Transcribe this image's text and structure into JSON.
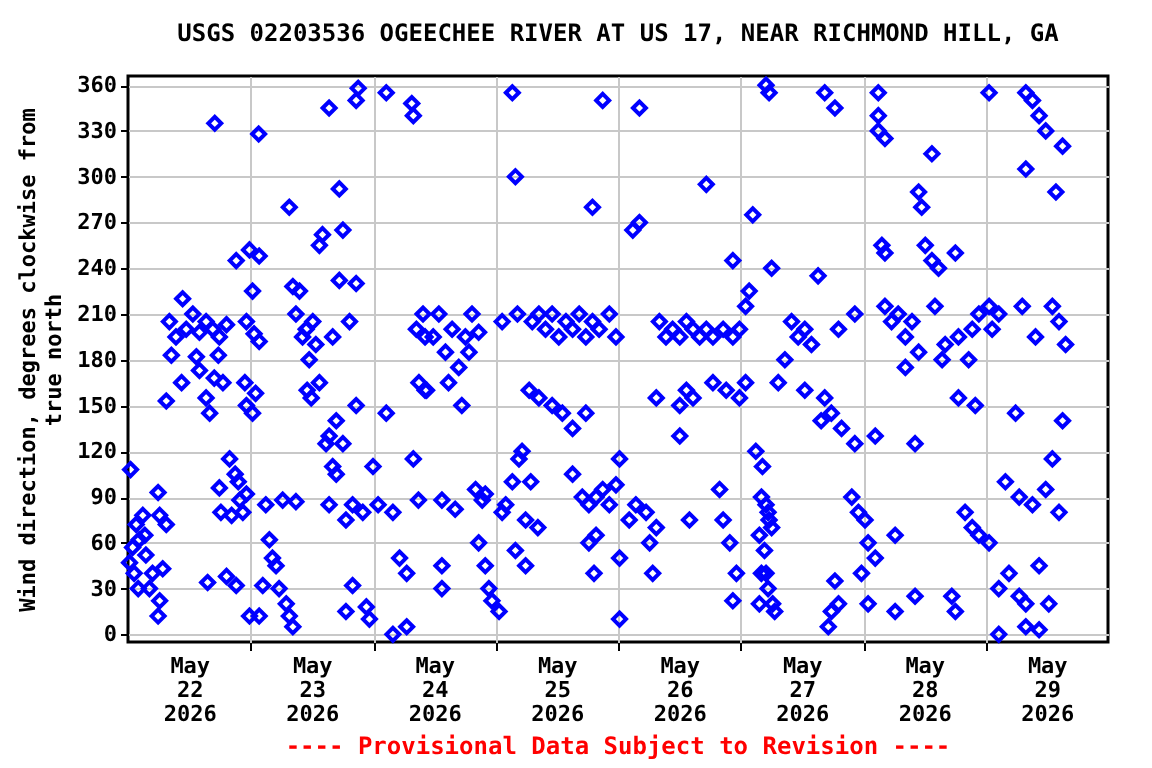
{
  "chart_data": {
    "type": "scatter",
    "title": "USGS 02203536 OGEECHEE RIVER AT US 17, NEAR RICHMOND HILL, GA",
    "ylabel": "Wind direction, degrees clockwise from true north",
    "annotations": [
      "---- Provisional Data Subject to Revision ----"
    ],
    "xlim": [
      "2026-05-22T00:00",
      "2026-05-30T00:00"
    ],
    "xticks": [
      {
        "value": "2026-05-22T12:00",
        "label": "May\n22\n2026"
      },
      {
        "value": "2026-05-23T00:00",
        "label": null
      },
      {
        "value": "2026-05-23T12:00",
        "label": "May\n23\n2026"
      },
      {
        "value": "2026-05-24T00:00",
        "label": null
      },
      {
        "value": "2026-05-24T12:00",
        "label": "May\n24\n2026"
      },
      {
        "value": "2026-05-25T00:00",
        "label": null
      },
      {
        "value": "2026-05-25T12:00",
        "label": "May\n25\n2026"
      },
      {
        "value": "2026-05-26T00:00",
        "label": null
      },
      {
        "value": "2026-05-26T12:00",
        "label": "May\n26\n2026"
      },
      {
        "value": "2026-05-27T00:00",
        "label": null
      },
      {
        "value": "2026-05-27T12:00",
        "label": "May\n27\n2026"
      },
      {
        "value": "2026-05-28T00:00",
        "label": null
      },
      {
        "value": "2026-05-28T12:00",
        "label": "May\n28\n2026"
      },
      {
        "value": "2026-05-29T00:00",
        "label": null
      },
      {
        "value": "2026-05-29T12:00",
        "label": "May\n29\n2026"
      }
    ],
    "ylim": [
      -5,
      366
    ],
    "yticks": [
      0,
      30,
      60,
      90,
      120,
      150,
      180,
      210,
      240,
      270,
      300,
      330,
      360
    ],
    "grid": true,
    "marker": "diamond",
    "series": [
      {
        "color": "#0000ff",
        "x": [
          "2026-05-22T00:30",
          "2026-05-22T00:18",
          "2026-05-22T00:54",
          "2026-05-22T01:36",
          "2026-05-22T02:12",
          "2026-05-22T02:54",
          "2026-05-22T01:12",
          "2026-05-22T02:00",
          "2026-05-22T03:30",
          "2026-05-22T04:48",
          "2026-05-22T05:54",
          "2026-05-22T06:12",
          "2026-05-22T06:48",
          "2026-05-22T06:12",
          "2026-05-22T05:54",
          "2026-05-22T07:30",
          "2026-05-22T04:12",
          "2026-05-22T03:18",
          "2026-05-22T07:30",
          "2026-05-22T08:30",
          "2026-05-22T10:30",
          "2026-05-22T10:42",
          "2026-05-22T08:06",
          "2026-05-22T09:24",
          "2026-05-22T11:24",
          "2026-05-22T12:42",
          "2026-05-22T14:00",
          "2026-05-22T15:18",
          "2026-05-22T16:36",
          "2026-05-22T17:54",
          "2026-05-22T19:18",
          "2026-05-22T13:24",
          "2026-05-22T14:00",
          "2026-05-22T15:18",
          "2026-05-22T16:00",
          "2026-05-22T17:42",
          "2026-05-22T16:54",
          "2026-05-22T18:36",
          "2026-05-22T17:00",
          "2026-05-22T15:36",
          "2026-05-22T19:18",
          "2026-05-22T21:12",
          "2026-05-22T17:54",
          "2026-05-22T18:12",
          "2026-05-22T19:54",
          "2026-05-22T20:18",
          "2026-05-22T21:00",
          "2026-05-22T21:36",
          "2026-05-22T21:54",
          "2026-05-22T22:30",
          "2026-05-22T23:12",
          "2026-05-22T21:12",
          "2026-05-22T23:12",
          "2026-05-22T23:48",
          "2026-05-22T22:54",
          "2026-05-22T23:12",
          "2026-05-22T23:48",
          "2026-05-23T00:24",
          "2026-05-23T01:42",
          "2026-05-23T00:42",
          "2026-05-23T01:42",
          "2026-05-23T00:24",
          "2026-05-23T01:00",
          "2026-05-23T01:36",
          "2026-05-23T01:42",
          "2026-05-23T02:24",
          "2026-05-23T03:00",
          "2026-05-23T03:42",
          "2026-05-23T04:18",
          "2026-05-23T05:00",
          "2026-05-23T05:36",
          "2026-05-23T06:18",
          "2026-05-23T07:00",
          "2026-05-23T07:36",
          "2026-05-23T08:18",
          "2026-05-23T08:54",
          "2026-05-23T07:36",
          "2026-05-23T08:18",
          "2026-05-23T09:36",
          "2026-05-23T08:54",
          "2026-05-23T10:12",
          "2026-05-23T10:54",
          "2026-05-23T11:30",
          "2026-05-23T12:12",
          "2026-05-23T12:48",
          "2026-05-23T11:06",
          "2026-05-23T11:54",
          "2026-05-23T13:30",
          "2026-05-23T14:06",
          "2026-05-23T13:30",
          "2026-05-23T15:24",
          "2026-05-23T17:24",
          "2026-05-23T18:06",
          "2026-05-23T17:24",
          "2026-05-23T20:42",
          "2026-05-23T19:24",
          "2026-05-23T16:06",
          "2026-05-23T16:48",
          "2026-05-23T14:48",
          "2026-05-23T15:24",
          "2026-05-23T16:06",
          "2026-05-23T16:48",
          "2026-05-23T18:06",
          "2026-05-23T15:24",
          "2026-05-23T18:42",
          "2026-05-23T20:00",
          "2026-05-23T18:42",
          "2026-05-23T20:42",
          "2026-05-23T20:00",
          "2026-05-23T22:00",
          "2026-05-23T22:42",
          "2026-05-23T23:18",
          "2026-05-23T20:42",
          "2026-05-23T21:06",
          "2026-05-24T00:00",
          "2026-05-24T01:00",
          "2026-05-24T02:36",
          "2026-05-24T02:36",
          "2026-05-24T03:54",
          "2026-05-24T05:12",
          "2026-05-24T06:36",
          "2026-05-24T03:54",
          "2026-05-24T06:36",
          "2026-05-24T07:54",
          "2026-05-24T08:30",
          "2026-05-24T07:54",
          "2026-05-24T07:36",
          "2026-05-24T09:48",
          "2026-05-24T11:48",
          "2026-05-24T09:00",
          "2026-05-24T10:30",
          "2026-05-24T10:12",
          "2026-05-24T12:54",
          "2026-05-24T15:30",
          "2026-05-24T18:06",
          "2026-05-24T19:24",
          "2026-05-24T20:42",
          "2026-05-24T14:12",
          "2026-05-24T16:48",
          "2026-05-24T18:48",
          "2026-05-24T14:48",
          "2026-05-24T17:24",
          "2026-05-24T10:12",
          "2026-05-24T08:54",
          "2026-05-24T13:30",
          "2026-05-24T16:06",
          "2026-05-24T20:06",
          "2026-05-24T21:24",
          "2026-05-24T22:00",
          "2026-05-24T13:30",
          "2026-05-24T13:30",
          "2026-05-24T20:42",
          "2026-05-24T22:00",
          "2026-05-24T22:42",
          "2026-05-24T23:18",
          "2026-05-25T00:42",
          "2026-05-25T01:18",
          "2026-05-25T02:00",
          "2026-05-25T03:18",
          "2026-05-25T04:36",
          "2026-05-25T05:12",
          "2026-05-25T05:54",
          "2026-05-25T03:54",
          "2026-05-25T05:54",
          "2026-05-25T08:18",
          "2026-05-25T03:18",
          "2026-05-25T03:54",
          "2026-05-25T01:18",
          "2026-05-25T04:18",
          "2026-05-25T07:12",
          "2026-05-25T08:30",
          "2026-05-25T09:48",
          "2026-05-25T11:06",
          "2026-05-25T12:24",
          "2026-05-25T13:48",
          "2026-05-25T15:06",
          "2026-05-25T16:24",
          "2026-05-25T17:42",
          "2026-05-25T19:00",
          "2026-05-25T20:18",
          "2026-05-25T22:18",
          "2026-05-25T23:36",
          "2026-05-25T06:36",
          "2026-05-25T08:30",
          "2026-05-25T11:06",
          "2026-05-25T13:06",
          "2026-05-25T15:06",
          "2026-05-25T17:42",
          "2026-05-25T06:54",
          "2026-05-25T15:06",
          "2026-05-25T17:00",
          "2026-05-25T18:18",
          "2026-05-25T19:42",
          "2026-05-25T21:00",
          "2026-05-25T22:18",
          "2026-05-25T23:36",
          "2026-05-25T18:18",
          "2026-05-25T19:42",
          "2026-05-25T19:00",
          "2026-05-25T21:00",
          "2026-05-25T19:18",
          "2026-05-26T00:18",
          "2026-05-26T00:18",
          "2026-05-26T00:18",
          "2026-05-26T02:12",
          "2026-05-26T03:30",
          "2026-05-26T02:54",
          "2026-05-26T04:12",
          "2026-05-26T04:12",
          "2026-05-26T05:30",
          "2026-05-26T06:12",
          "2026-05-26T06:48",
          "2026-05-26T07:30",
          "2026-05-26T08:06",
          "2026-05-26T09:24",
          "2026-05-26T10:42",
          "2026-05-26T12:06",
          "2026-05-26T13:24",
          "2026-05-26T14:42",
          "2026-05-26T16:00",
          "2026-05-26T17:18",
          "2026-05-26T18:36",
          "2026-05-26T20:36",
          "2026-05-26T22:30",
          "2026-05-26T23:48",
          "2026-05-26T12:06",
          "2026-05-26T13:24",
          "2026-05-26T14:42",
          "2026-05-26T18:36",
          "2026-05-26T21:12",
          "2026-05-26T23:48",
          "2026-05-26T17:18",
          "2026-05-26T22:30",
          "2026-05-26T07:30",
          "2026-05-26T12:06",
          "2026-05-26T14:00",
          "2026-05-26T19:54",
          "2026-05-26T20:36",
          "2026-05-26T21:54",
          "2026-05-26T22:30",
          "2026-05-26T23:12",
          "2026-05-27T01:00",
          "2026-05-27T01:42",
          "2026-05-27T01:00",
          "2026-05-27T02:24",
          "2026-05-27T03:00",
          "2026-05-27T04:18",
          "2026-05-27T05:00",
          "2026-05-27T05:36",
          "2026-05-27T03:42",
          "2026-05-27T05:00",
          "2026-05-27T03:42",
          "2026-05-27T06:18",
          "2026-05-27T05:36",
          "2026-05-27T05:00",
          "2026-05-27T16:30",
          "2026-05-27T18:30",
          "2026-05-27T06:06",
          "2026-05-27T15:12",
          "2026-05-27T10:00",
          "2026-05-27T11:18",
          "2026-05-27T12:36",
          "2026-05-27T13:54",
          "2026-05-27T08:42",
          "2026-05-27T07:24",
          "2026-05-27T12:36",
          "2026-05-27T16:30",
          "2026-05-27T19:12",
          "2026-05-27T22:24",
          "2026-05-27T15:48",
          "2026-05-27T17:48",
          "2026-05-27T19:48",
          "2026-05-27T04:06",
          "2026-05-27T05:24",
          "2026-05-27T06:06",
          "2026-05-27T04:42",
          "2026-05-27T04:06",
          "2026-05-27T05:24",
          "2026-05-27T06:42",
          "2026-05-27T17:48",
          "2026-05-27T19:12",
          "2026-05-27T17:12",
          "2026-05-27T21:48",
          "2026-05-27T22:24",
          "2026-05-27T18:30",
          "2026-05-27T23:06",
          "2026-05-27T23:42",
          "2026-05-28T03:00",
          "2026-05-28T03:00",
          "2026-05-28T03:00",
          "2026-05-28T04:18",
          "2026-05-28T13:30",
          "2026-05-28T10:54",
          "2026-05-28T11:30",
          "2026-05-28T04:18",
          "2026-05-28T03:42",
          "2026-05-28T12:12",
          "2026-05-28T13:30",
          "2026-05-28T14:48",
          "2026-05-28T18:06",
          "2026-05-28T04:18",
          "2026-05-28T05:36",
          "2026-05-28T06:54",
          "2026-05-28T08:18",
          "2026-05-28T09:36",
          "2026-05-28T14:06",
          "2026-05-28T10:54",
          "2026-05-28T16:06",
          "2026-05-28T18:42",
          "2026-05-28T21:24",
          "2026-05-28T22:42",
          "2026-05-28T08:18",
          "2026-05-28T15:30",
          "2026-05-28T20:42",
          "2026-05-28T02:24",
          "2026-05-28T10:12",
          "2026-05-28T00:24",
          "2026-05-28T01:00",
          "2026-05-28T02:24",
          "2026-05-28T06:18",
          "2026-05-28T01:00",
          "2026-05-28T06:18",
          "2026-05-28T10:12",
          "2026-05-28T17:24",
          "2026-05-28T18:06",
          "2026-05-28T20:00",
          "2026-05-28T21:24",
          "2026-05-28T22:42",
          "2026-05-28T18:42",
          "2026-05-28T22:00",
          "2026-05-29T00:42",
          "2026-05-29T01:18",
          "2026-05-29T02:36",
          "2026-05-29T07:12",
          "2026-05-29T13:06",
          "2026-05-29T09:48",
          "2026-05-29T15:42",
          "2026-05-29T14:24",
          "2026-05-29T07:54",
          "2026-05-29T09:12",
          "2026-05-29T10:30",
          "2026-05-29T11:48",
          "2026-05-29T15:06",
          "2026-05-29T07:54",
          "2026-05-29T13:48",
          "2026-05-29T00:42",
          "2026-05-29T05:54",
          "2026-05-29T15:06",
          "2026-05-29T13:06",
          "2026-05-29T03:54",
          "2026-05-29T06:36",
          "2026-05-29T09:12",
          "2026-05-29T11:48",
          "2026-05-29T14:24",
          "2026-05-29T00:42",
          "2026-05-29T02:36",
          "2026-05-29T04:36",
          "2026-05-29T06:36",
          "2026-05-29T07:54",
          "2026-05-29T10:30",
          "2026-05-29T12:24",
          "2026-05-29T02:36",
          "2026-05-29T07:54",
          "2026-05-29T10:30"
        ],
        "values": [
          108,
          47,
          57,
          72,
          62,
          78,
          40,
          30,
          52,
          40,
          93,
          78,
          43,
          22,
          12,
          72,
          30,
          65,
          153,
          183,
          165,
          220,
          205,
          195,
          200,
          210,
          198,
          205,
          200,
          195,
          203,
          182,
          173,
          155,
          145,
          183,
          168,
          165,
          335,
          34,
          38,
          32,
          96,
          80,
          115,
          78,
          105,
          100,
          88,
          80,
          92,
          245,
          205,
          252,
          165,
          150,
          12,
          225,
          248,
          197,
          192,
          145,
          158,
          328,
          12,
          32,
          85,
          62,
          50,
          45,
          30,
          88,
          20,
          12,
          5,
          87,
          280,
          228,
          225,
          210,
          195,
          200,
          180,
          205,
          190,
          160,
          155,
          165,
          262,
          255,
          345,
          292,
          265,
          232,
          230,
          205,
          195,
          140,
          125,
          130,
          110,
          105,
          125,
          85,
          75,
          32,
          15,
          150,
          85,
          80,
          18,
          10,
          350,
          358,
          110,
          85,
          355,
          145,
          80,
          50,
          40,
          0,
          5,
          115,
          200,
          340,
          348,
          210,
          195,
          165,
          160,
          195,
          210,
          200,
          195,
          210,
          198,
          185,
          175,
          185,
          165,
          150,
          160,
          88,
          88,
          82,
          95,
          88,
          92,
          45,
          30,
          60,
          45,
          30,
          22,
          15,
          80,
          85,
          100,
          115,
          120,
          75,
          55,
          45,
          70,
          355,
          300,
          205,
          210,
          205,
          210,
          200,
          210,
          195,
          205,
          200,
          210,
          195,
          205,
          200,
          210,
          195,
          160,
          155,
          150,
          145,
          135,
          145,
          100,
          105,
          90,
          85,
          90,
          95,
          85,
          98,
          60,
          65,
          280,
          350,
          40,
          115,
          10,
          50,
          75,
          85,
          265,
          270,
          345,
          80,
          60,
          40,
          70,
          205,
          195,
          200,
          195,
          205,
          200,
          195,
          200,
          195,
          200,
          195,
          200,
          150,
          160,
          155,
          165,
          160,
          155,
          295,
          245,
          155,
          130,
          75,
          95,
          75,
          60,
          22,
          40,
          215,
          225,
          165,
          275,
          120,
          110,
          85,
          75,
          65,
          40,
          20,
          20,
          355,
          360,
          355,
          345,
          240,
          235,
          205,
          195,
          200,
          190,
          180,
          165,
          160,
          155,
          200,
          210,
          140,
          145,
          135,
          90,
          80,
          70,
          55,
          40,
          30,
          15,
          15,
          20,
          5,
          90,
          125,
          35,
          80,
          40,
          355,
          340,
          330,
          325,
          315,
          290,
          280,
          250,
          255,
          255,
          245,
          240,
          250,
          215,
          205,
          210,
          195,
          205,
          215,
          185,
          190,
          195,
          200,
          210,
          175,
          180,
          180,
          130,
          125,
          75,
          60,
          50,
          65,
          20,
          15,
          25,
          25,
          15,
          80,
          70,
          65,
          155,
          150,
          215,
          200,
          210,
          215,
          215,
          195,
          190,
          205,
          355,
          350,
          340,
          330,
          320,
          305,
          290,
          355,
          145,
          140,
          115,
          100,
          90,
          85,
          95,
          80,
          60,
          30,
          40,
          25,
          20,
          45,
          20,
          0,
          5,
          3
        ]
      }
    ]
  }
}
